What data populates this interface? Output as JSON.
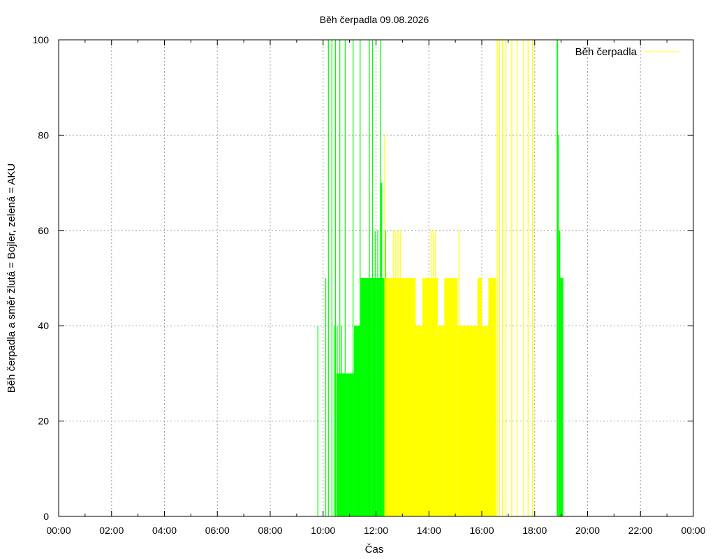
{
  "chart_data": {
    "type": "bar",
    "title": "Běh čerpadla 09.08.2026",
    "xlabel": "Čas",
    "ylabel": "Běh čerpadla a směr žlutá = Bojler, zelená = AKU",
    "xlim": [
      "00:00",
      "24:00"
    ],
    "ylim": [
      0,
      100
    ],
    "grid": true,
    "legend": {
      "placement": "top-right",
      "entries": [
        {
          "label": "Běh čerpadla",
          "color": "#ffff00"
        }
      ]
    },
    "x_tick_labels": [
      "00:00",
      "02:00",
      "04:00",
      "06:00",
      "08:00",
      "10:00",
      "12:00",
      "14:00",
      "16:00",
      "18:00",
      "20:00",
      "22:00",
      "00:00"
    ],
    "y_tick_labels": [
      "0",
      "20",
      "40",
      "60",
      "80",
      "100"
    ],
    "series": [
      {
        "color": "#00ff00",
        "direction": "AKU",
        "spikes": [
          {
            "t": "09:48",
            "v": 40
          },
          {
            "t": "10:06",
            "v": 50
          },
          {
            "t": "10:12",
            "v": 100
          },
          {
            "t": "10:20",
            "v": 100
          },
          {
            "t": "10:25",
            "v": 40
          },
          {
            "t": "10:28",
            "v": 100
          },
          {
            "t": "10:32",
            "v": 40
          },
          {
            "t": "10:38",
            "v": 100
          },
          {
            "t": "10:42",
            "v": 40
          },
          {
            "t": "10:50",
            "v": 100
          },
          {
            "t": "11:08",
            "v": 100
          },
          {
            "t": "11:24",
            "v": 100
          },
          {
            "t": "11:45",
            "v": 100
          },
          {
            "t": "11:52",
            "v": 100
          },
          {
            "t": "11:58",
            "v": 60
          },
          {
            "t": "12:04",
            "v": 60
          },
          {
            "t": "12:10",
            "v": 100
          },
          {
            "t": "12:12",
            "v": 60
          },
          {
            "t": "12:22",
            "v": 60
          }
        ],
        "blocks": [
          {
            "start": "10:30",
            "end": "11:10",
            "v": 30
          },
          {
            "start": "11:10",
            "end": "11:25",
            "v": 40
          },
          {
            "start": "11:25",
            "end": "11:50",
            "v": 50
          },
          {
            "start": "11:50",
            "end": "12:02",
            "v": 50
          },
          {
            "start": "12:02",
            "end": "12:10",
            "v": 50
          },
          {
            "start": "12:10",
            "end": "12:14",
            "v": 70
          },
          {
            "start": "12:14",
            "end": "12:20",
            "v": 50
          },
          {
            "start": "18:50",
            "end": "18:53",
            "v": 100
          },
          {
            "start": "18:53",
            "end": "18:55",
            "v": 80
          },
          {
            "start": "18:55",
            "end": "18:58",
            "v": 60
          },
          {
            "start": "18:58",
            "end": "19:05",
            "v": 50
          }
        ]
      },
      {
        "color": "#ffff00",
        "direction": "Bojler",
        "spikes": [
          {
            "t": "12:20",
            "v": 80
          },
          {
            "t": "12:40",
            "v": 60
          },
          {
            "t": "12:45",
            "v": 60
          },
          {
            "t": "12:50",
            "v": 60
          },
          {
            "t": "12:55",
            "v": 60
          },
          {
            "t": "14:05",
            "v": 60
          },
          {
            "t": "14:10",
            "v": 60
          },
          {
            "t": "14:15",
            "v": 60
          },
          {
            "t": "15:08",
            "v": 60
          },
          {
            "t": "16:35",
            "v": 100
          },
          {
            "t": "16:40",
            "v": 100
          },
          {
            "t": "16:47",
            "v": 100
          },
          {
            "t": "16:55",
            "v": 100
          },
          {
            "t": "17:08",
            "v": 100
          },
          {
            "t": "17:20",
            "v": 100
          },
          {
            "t": "17:35",
            "v": 100
          },
          {
            "t": "17:45",
            "v": 100
          },
          {
            "t": "17:55",
            "v": 100
          }
        ],
        "blocks": [
          {
            "start": "12:20",
            "end": "13:30",
            "v": 50
          },
          {
            "start": "13:30",
            "end": "13:45",
            "v": 40
          },
          {
            "start": "13:45",
            "end": "14:20",
            "v": 50
          },
          {
            "start": "14:20",
            "end": "14:35",
            "v": 40
          },
          {
            "start": "14:35",
            "end": "15:05",
            "v": 50
          },
          {
            "start": "15:05",
            "end": "15:50",
            "v": 40
          },
          {
            "start": "15:50",
            "end": "16:00",
            "v": 50
          },
          {
            "start": "16:00",
            "end": "16:15",
            "v": 40
          },
          {
            "start": "16:15",
            "end": "16:32",
            "v": 50
          }
        ]
      }
    ]
  }
}
